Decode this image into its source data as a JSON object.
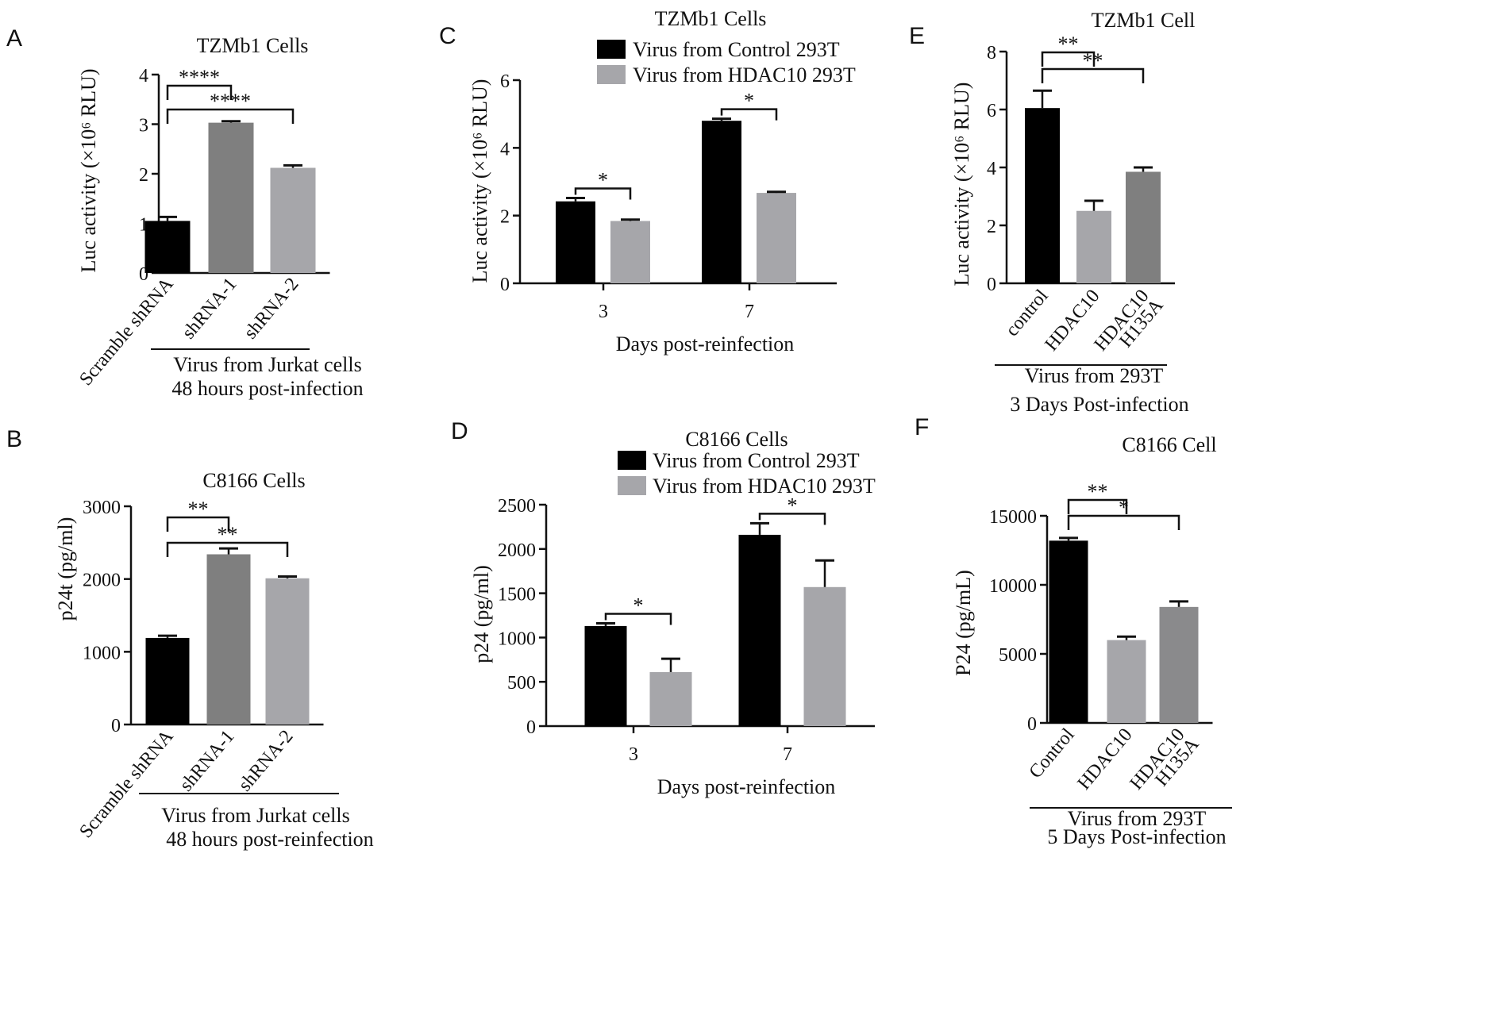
{
  "colors": {
    "black": "#000000",
    "dark_gray": "#7f7f7f",
    "light_gray": "#a6a6aa",
    "mid_gray": "#8a8a8c"
  },
  "chart_data": [
    {
      "panel": "A",
      "type": "bar",
      "title": "TZMb1  Cells",
      "ylabel": "Luc activity (×10⁶ RLU)",
      "ylim": [
        0,
        4
      ],
      "yticks": [
        "0",
        "1",
        "2",
        "3",
        "4"
      ],
      "categories": [
        "Scramble shRNA",
        "shRNA-1",
        "shRNA-2"
      ],
      "values": [
        1.05,
        3.03,
        2.12
      ],
      "errors": [
        0.08,
        0.03,
        0.05
      ],
      "bar_colors": [
        "#000000",
        "#7f7f7f",
        "#a6a6aa"
      ],
      "significance": [
        {
          "from": 0,
          "to": 1,
          "label": "****"
        },
        {
          "from": 0,
          "to": 2,
          "label": "****"
        }
      ],
      "group_label": [
        "Virus from Jurkat cells",
        "48 hours post-infection"
      ]
    },
    {
      "panel": "B",
      "type": "bar",
      "title": "C8166  Cells",
      "ylabel": "p24t (pg/ml)",
      "ylim": [
        0,
        3000
      ],
      "yticks": [
        "0",
        "1000",
        "2000",
        "3000"
      ],
      "categories": [
        "Scramble shRNA",
        "shRNA-1",
        "shRNA-2"
      ],
      "values": [
        1190,
        2340,
        2010
      ],
      "errors": [
        30,
        80,
        25
      ],
      "bar_colors": [
        "#000000",
        "#7f7f7f",
        "#a6a6aa"
      ],
      "significance": [
        {
          "from": 0,
          "to": 1,
          "label": "**"
        },
        {
          "from": 0,
          "to": 2,
          "label": "**"
        }
      ],
      "group_label": [
        "Virus from Jurkat cells",
        "48 hours post-reinfection"
      ]
    },
    {
      "panel": "C",
      "type": "bar",
      "title": "TZMb1  Cells",
      "ylabel": "Luc activity (×10⁶ RLU)",
      "xlabel": "Days post-reinfection",
      "ylim": [
        0,
        6
      ],
      "yticks": [
        "0",
        "2",
        "4",
        "6"
      ],
      "categories": [
        "3",
        "7"
      ],
      "series": [
        {
          "name": "Virus from Control 293T",
          "color": "#000000",
          "values": [
            2.42,
            4.8
          ],
          "errors": [
            0.1,
            0.06
          ]
        },
        {
          "name": "Virus from HDAC10 293T",
          "color": "#a6a6aa",
          "values": [
            1.84,
            2.67
          ],
          "errors": [
            0.04,
            0.03
          ]
        }
      ],
      "significance": [
        {
          "category": 0,
          "label": "*"
        },
        {
          "category": 1,
          "label": "*"
        }
      ]
    },
    {
      "panel": "D",
      "type": "bar",
      "title": "C8166 Cells",
      "ylabel": "p24  (pg/ml)",
      "xlabel": "Days post-reinfection",
      "ylim": [
        0,
        2500
      ],
      "yticks": [
        "0",
        "500",
        "1000",
        "1500",
        "2000",
        "2500"
      ],
      "categories": [
        "3",
        "7"
      ],
      "series": [
        {
          "name": "Virus from Control 293T",
          "color": "#000000",
          "values": [
            1130,
            2160
          ],
          "errors": [
            30,
            130
          ]
        },
        {
          "name": "Virus from HDAC10 293T",
          "color": "#a6a6aa",
          "values": [
            610,
            1570
          ],
          "errors": [
            150,
            300
          ]
        }
      ],
      "significance": [
        {
          "category": 0,
          "label": "*"
        },
        {
          "category": 1,
          "label": "*"
        }
      ]
    },
    {
      "panel": "E",
      "type": "bar",
      "title": "TZMb1  Cell",
      "ylabel": "Luc activity (×10⁶ RLU)",
      "ylim": [
        0,
        8
      ],
      "yticks": [
        "0",
        "2",
        "4",
        "6",
        "8"
      ],
      "categories": [
        "control",
        "HDAC10",
        "HDAC10 H135A"
      ],
      "values": [
        6.05,
        2.5,
        3.85
      ],
      "errors": [
        0.6,
        0.35,
        0.15
      ],
      "bar_colors": [
        "#000000",
        "#a6a6aa",
        "#7f7f7f"
      ],
      "significance": [
        {
          "from": 0,
          "to": 1,
          "label": "**"
        },
        {
          "from": 0,
          "to": 2,
          "label": "**"
        }
      ],
      "group_label": [
        "Virus from 293T",
        "3 Days Post-infection"
      ]
    },
    {
      "panel": "F",
      "type": "bar",
      "title": "C8166  Cell",
      "ylabel": "P24 (pg/mL)",
      "ylim": [
        0,
        15000
      ],
      "yticks": [
        "0",
        "5000",
        "10000",
        "15000"
      ],
      "categories": [
        "Control",
        "HDAC10",
        "HDAC10 H135A"
      ],
      "values": [
        13200,
        6000,
        8400
      ],
      "errors": [
        200,
        250,
        400
      ],
      "bar_colors": [
        "#000000",
        "#a6a6aa",
        "#8a8a8c"
      ],
      "significance": [
        {
          "from": 0,
          "to": 1,
          "label": "**"
        },
        {
          "from": 0,
          "to": 2,
          "label": "*"
        }
      ],
      "group_label": [
        "Virus from 293T",
        "5 Days Post-infection"
      ]
    }
  ]
}
